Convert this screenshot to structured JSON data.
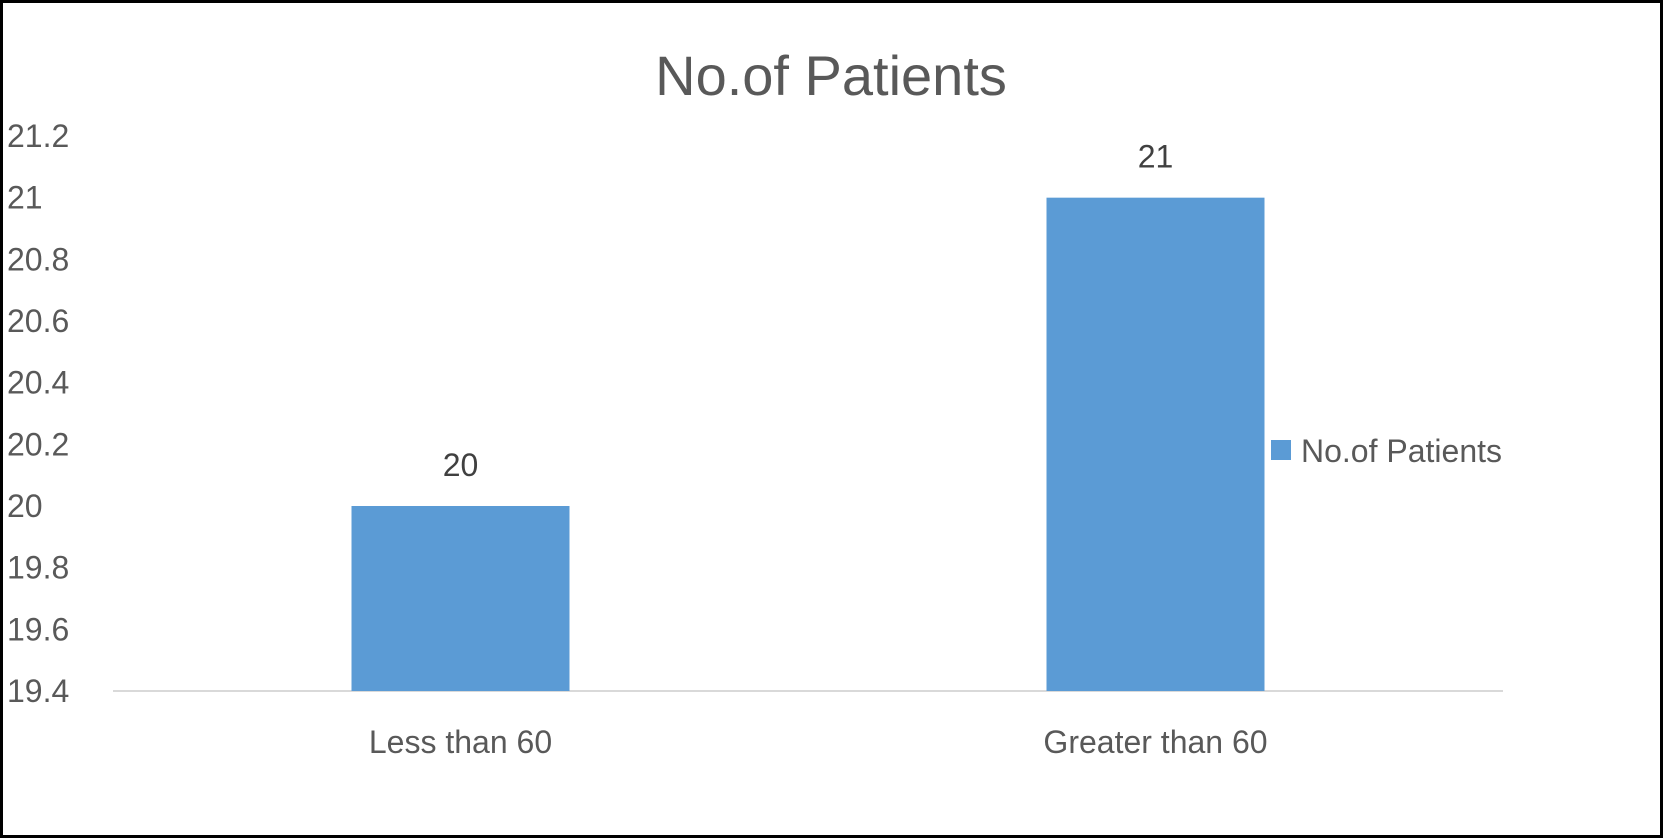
{
  "chart_data": {
    "type": "bar",
    "title": "No.of Patients",
    "categories": [
      "Less than 60",
      "Greater than 60"
    ],
    "series": [
      {
        "name": "No.of Patients",
        "values": [
          20,
          21
        ],
        "color": "#5B9BD5"
      }
    ],
    "data_labels": [
      "20",
      "21"
    ],
    "xlabel": "",
    "ylabel": "",
    "ylim": [
      19.4,
      21.2
    ],
    "yticks": [
      "19.4",
      "19.6",
      "19.8",
      "20",
      "20.2",
      "20.4",
      "20.6",
      "20.8",
      "21",
      "21.2"
    ],
    "grid": false,
    "legend": {
      "position": "right",
      "entries": [
        "No.of Patients"
      ]
    }
  }
}
